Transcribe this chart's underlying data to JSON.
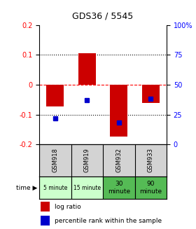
{
  "title": "GDS36 / 5545",
  "samples": [
    "GSM918",
    "GSM919",
    "GSM932",
    "GSM933"
  ],
  "time_labels": [
    "5 minute",
    "15 minute",
    "30\nminute",
    "90\nminute"
  ],
  "time_colors": [
    "#ccffcc",
    "#ccffcc",
    "#55bb55",
    "#55bb55"
  ],
  "log_ratios": [
    -0.072,
    0.105,
    -0.175,
    -0.062
  ],
  "percentile_ranks": [
    22,
    37,
    18,
    38
  ],
  "bar_color": "#cc0000",
  "pct_color": "#0000cc",
  "ylim": [
    -0.2,
    0.2
  ],
  "pct_ylim": [
    0,
    100
  ],
  "yticks_left": [
    -0.2,
    -0.1,
    0,
    0.1,
    0.2
  ],
  "yticks_right": [
    0,
    25,
    50,
    75,
    100
  ],
  "bar_width": 0.55,
  "pct_marker_size": 5,
  "legend_label_red": "log ratio",
  "legend_label_blue": "percentile rank within the sample"
}
